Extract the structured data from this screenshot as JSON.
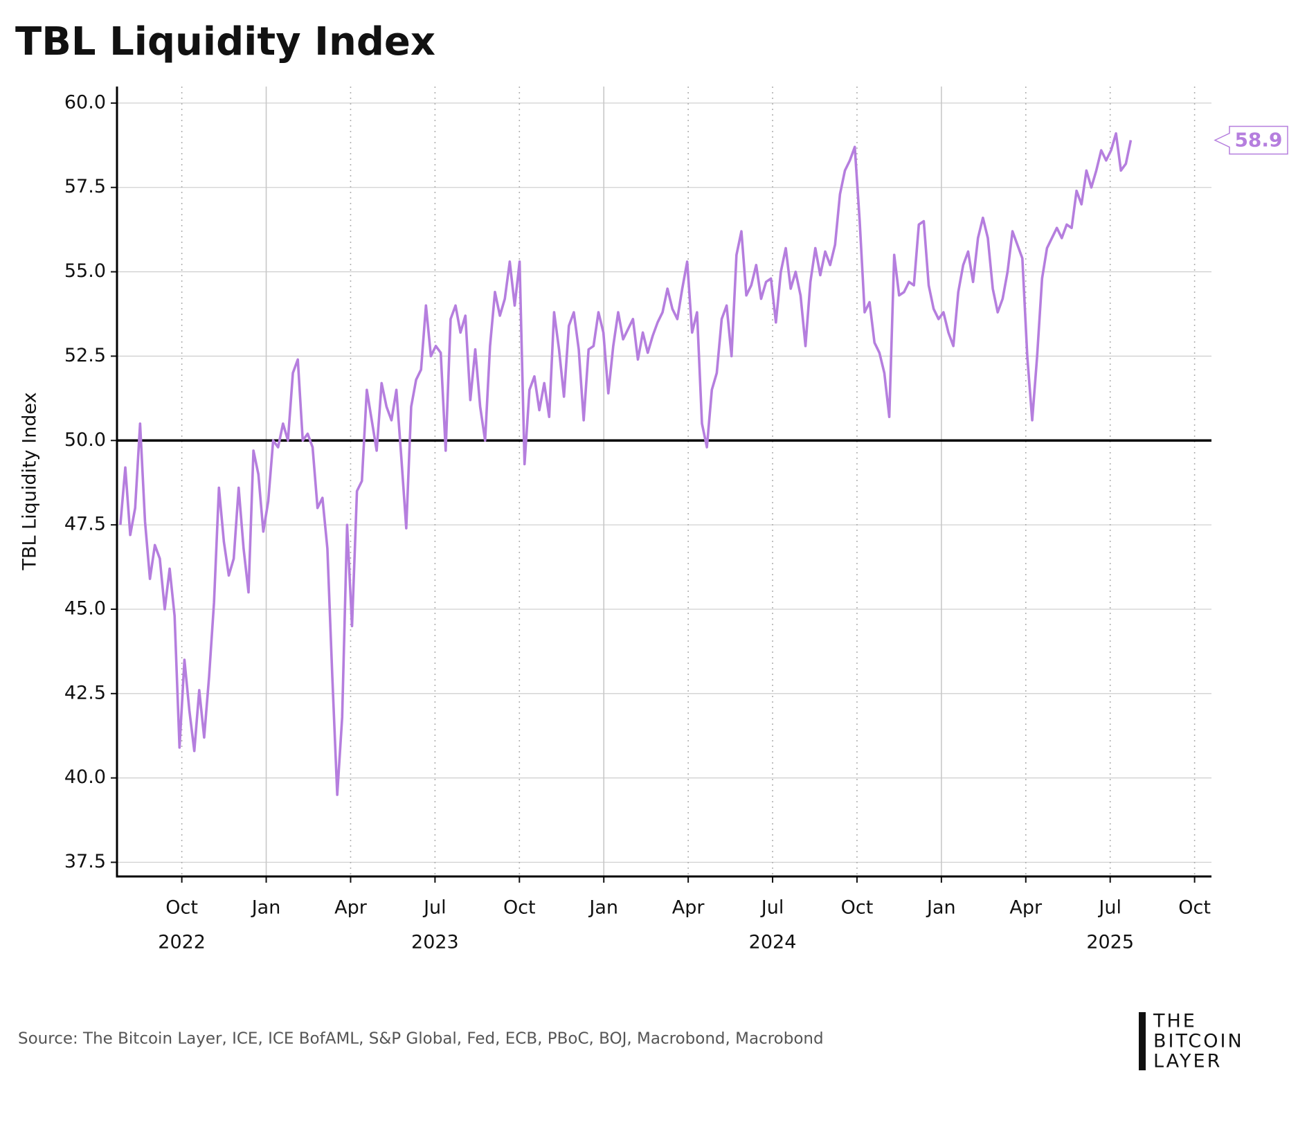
{
  "chart_data": {
    "type": "line",
    "title": "TBL Liquidity Index",
    "ylabel": "TBL Liquidity Index",
    "source": "Source: The Bitcoin Layer, ICE, ICE BofAML, S&P Global, Fed, ECB, PBoC, BOJ, Macrobond, Macrobond",
    "logo": [
      "THE",
      "BITCOIN",
      "LAYER"
    ],
    "xlim": [
      2022.558,
      2025.8
    ],
    "ylim": [
      37.08,
      60.49
    ],
    "xticks": [
      {
        "value": 2022.75,
        "label": "Oct"
      },
      {
        "value": 2023,
        "label": "Jan"
      },
      {
        "value": 2023.25,
        "label": "Apr"
      },
      {
        "value": 2023.5,
        "label": "Jul"
      },
      {
        "value": 2023.75,
        "label": "Oct"
      },
      {
        "value": 2024,
        "label": "Jan"
      },
      {
        "value": 2024.25,
        "label": "Apr"
      },
      {
        "value": 2024.5,
        "label": "Jul"
      },
      {
        "value": 2024.75,
        "label": "Oct"
      },
      {
        "value": 2025,
        "label": "Jan"
      },
      {
        "value": 2025.25,
        "label": "Apr"
      },
      {
        "value": 2025.5,
        "label": "Jul"
      },
      {
        "value": 2025.75,
        "label": "Oct"
      }
    ],
    "x_year_labels": [
      {
        "value": 2022.75,
        "label": "2022"
      },
      {
        "value": 2023.5,
        "label": "2023"
      },
      {
        "value": 2024.5,
        "label": "2024"
      },
      {
        "value": 2025.5,
        "label": "2025"
      }
    ],
    "yticks": [
      37.5,
      {
        "value": 40,
        "label": "40.0"
      },
      42.5,
      {
        "value": 45,
        "label": "45.0"
      },
      47.5,
      {
        "value": 50,
        "label": "50.0"
      },
      52.5,
      {
        "value": 55,
        "label": "55.0"
      },
      57.5,
      {
        "value": 60,
        "label": "60.0"
      }
    ],
    "grid": true,
    "reference_line": 50,
    "last_value_label": true,
    "x": [
      2022.568,
      2022.5826,
      2022.5972,
      2022.6118,
      2022.6264,
      2022.641,
      2022.6556,
      2022.6702,
      2022.6848,
      2022.6994,
      2022.714,
      2022.7286,
      2022.7432,
      2022.7578,
      2022.7724,
      2022.787,
      2022.8016,
      2022.8162,
      2022.8308,
      2022.8454,
      2022.86,
      2022.8746,
      2022.8892,
      2022.9038,
      2022.9184,
      2022.933,
      2022.9476,
      2022.9622,
      2022.9768,
      2022.9914,
      2023.006,
      2023.0206,
      2023.0352,
      2023.0498,
      2023.0644,
      2023.079,
      2023.0936,
      2023.1082,
      2023.1228,
      2023.1374,
      2023.152,
      2023.1666,
      2023.1812,
      2023.1958,
      2023.2104,
      2023.225,
      2023.2396,
      2023.2542,
      2023.2688,
      2023.2834,
      2023.298,
      2023.3126,
      2023.3272,
      2023.3418,
      2023.3564,
      2023.371,
      2023.3856,
      2023.4002,
      2023.4148,
      2023.4294,
      2023.444,
      2023.4586,
      2023.4732,
      2023.4878,
      2023.5024,
      2023.517,
      2023.5316,
      2023.5462,
      2023.5608,
      2023.5754,
      2023.59,
      2023.6046,
      2023.6192,
      2023.6338,
      2023.6484,
      2023.663,
      2023.6776,
      2023.6922,
      2023.7068,
      2023.7214,
      2023.736,
      2023.7506,
      2023.7652,
      2023.7798,
      2023.7944,
      2023.809,
      2023.8236,
      2023.8382,
      2023.8528,
      2023.8674,
      2023.882,
      2023.8966,
      2023.9112,
      2023.9258,
      2023.9404,
      2023.955,
      2023.9696,
      2023.9842,
      2023.9988,
      2024.0134,
      2024.028,
      2024.0426,
      2024.0572,
      2024.0718,
      2024.0864,
      2024.101,
      2024.1156,
      2024.1302,
      2024.1448,
      2024.1594,
      2024.174,
      2024.1886,
      2024.2032,
      2024.2178,
      2024.2324,
      2024.247,
      2024.2616,
      2024.2762,
      2024.2908,
      2024.3054,
      2024.32,
      2024.3346,
      2024.3492,
      2024.3638,
      2024.3784,
      2024.393,
      2024.4076,
      2024.4222,
      2024.4368,
      2024.4514,
      2024.466,
      2024.4806,
      2024.4952,
      2024.5098,
      2024.5244,
      2024.539,
      2024.5536,
      2024.5682,
      2024.5828,
      2024.5974,
      2024.612,
      2024.6266,
      2024.6412,
      2024.6558,
      2024.6704,
      2024.685,
      2024.6996,
      2024.7142,
      2024.7288,
      2024.7434,
      2024.758,
      2024.7726,
      2024.7872,
      2024.8018,
      2024.8164,
      2024.831,
      2024.8456,
      2024.8602,
      2024.8748,
      2024.8894,
      2024.904,
      2024.9186,
      2024.9332,
      2024.9478,
      2024.9624,
      2024.977,
      2024.9916,
      2025.0062,
      2025.0208,
      2025.0354,
      2025.05,
      2025.0646,
      2025.0792,
      2025.0938,
      2025.1084,
      2025.123,
      2025.1376,
      2025.1522,
      2025.1668,
      2025.1814,
      2025.196,
      2025.2106,
      2025.2252,
      2025.2398,
      2025.2544,
      2025.269,
      2025.2836,
      2025.2982,
      2025.3128,
      2025.3274,
      2025.342,
      2025.3566,
      2025.3712,
      2025.3858,
      2025.4004,
      2025.415,
      2025.4296,
      2025.4442,
      2025.4588,
      2025.4734,
      2025.488,
      2025.5026,
      2025.5172,
      2025.5318,
      2025.5464,
      2025.561
    ],
    "series": [
      {
        "color": "#b57ede",
        "values": [
          47.5,
          49.2,
          47.2,
          48.0,
          50.5,
          47.6,
          45.9,
          46.9,
          46.5,
          45.0,
          46.2,
          44.8,
          40.9,
          43.5,
          42.0,
          40.8,
          42.6,
          41.2,
          43.0,
          45.2,
          48.6,
          47.0,
          46.0,
          46.5,
          48.6,
          46.8,
          45.5,
          49.7,
          49.0,
          47.3,
          48.2,
          50.0,
          49.8,
          50.5,
          50.0,
          52.0,
          52.4,
          50.0,
          50.2,
          49.8,
          48.0,
          48.3,
          46.8,
          43.0,
          39.5,
          41.8,
          47.5,
          44.5,
          48.5,
          48.8,
          51.5,
          50.6,
          49.7,
          51.7,
          51.0,
          50.6,
          51.5,
          49.5,
          47.4,
          51.0,
          51.8,
          52.1,
          54.0,
          52.5,
          52.8,
          52.6,
          49.7,
          53.6,
          54.0,
          53.2,
          53.7,
          51.2,
          52.7,
          51.0,
          50.0,
          52.8,
          54.4,
          53.7,
          54.2,
          55.3,
          54.0,
          55.3,
          49.3,
          51.5,
          51.9,
          50.9,
          51.7,
          50.7,
          53.8,
          52.7,
          51.3,
          53.4,
          53.8,
          52.7,
          50.6,
          52.7,
          52.8,
          53.8,
          53.2,
          51.4,
          52.8,
          53.8,
          53.0,
          53.3,
          53.6,
          52.4,
          53.2,
          52.6,
          53.1,
          53.5,
          53.8,
          54.5,
          53.9,
          53.6,
          54.5,
          55.3,
          53.2,
          53.8,
          50.5,
          49.8,
          51.5,
          52.0,
          53.6,
          54.0,
          52.5,
          55.5,
          56.2,
          54.3,
          54.6,
          55.2,
          54.2,
          54.7,
          54.8,
          53.5,
          55.0,
          55.7,
          54.5,
          55.0,
          54.3,
          52.8,
          54.7,
          55.7,
          54.9,
          55.6,
          55.2,
          55.8,
          57.3,
          58.0,
          58.3,
          58.7,
          56.5,
          53.8,
          54.1,
          52.9,
          52.6,
          52.0,
          50.7,
          55.5,
          54.3,
          54.4,
          54.7,
          54.6,
          56.4,
          56.5,
          54.6,
          53.9,
          53.6,
          53.8,
          53.2,
          52.8,
          54.4,
          55.2,
          55.6,
          54.7,
          56.0,
          56.6,
          56.0,
          54.5,
          53.8,
          54.2,
          55.0,
          56.2,
          55.8,
          55.4,
          52.5,
          50.6,
          52.5,
          54.8,
          55.7,
          56.0,
          56.3,
          56.0,
          56.4,
          56.3,
          57.4,
          57.0,
          58.0,
          57.5,
          58.0,
          58.6,
          58.3,
          58.6,
          59.1,
          58.0,
          58.2,
          58.9
        ]
      }
    ]
  }
}
